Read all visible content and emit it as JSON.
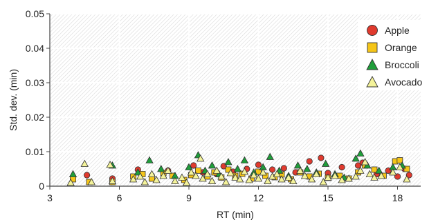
{
  "chart_data": {
    "type": "scatter",
    "title": "",
    "xlabel": "RT (min)",
    "ylabel": "Std. dev. (min)",
    "xlim": [
      3,
      19
    ],
    "ylim": [
      0,
      0.05
    ],
    "x_ticks": [
      3,
      6,
      9,
      12,
      15,
      18
    ],
    "x_tick_labels": [
      "3",
      "6",
      "9",
      "12",
      "15",
      "18"
    ],
    "y_ticks": [
      0,
      0.01,
      0.02,
      0.03,
      0.04,
      0.05
    ],
    "y_tick_labels": [
      "0",
      "0.01",
      "0.02",
      "0.03",
      "0.04",
      "0.05"
    ],
    "grid": true,
    "legend_position": "top-right",
    "series": [
      {
        "name": "Apple",
        "marker": "circle",
        "color": "#e03a2e",
        "x": [
          4.6,
          5.7,
          6.8,
          7.4,
          8.1,
          9.2,
          9.6,
          10.2,
          10.5,
          10.9,
          11.5,
          12.0,
          12.6,
          13.1,
          13.6,
          14.2,
          14.7,
          15.0,
          15.6,
          16.3,
          16.5,
          17.1,
          17.6,
          18.0,
          18.3,
          18.5
        ],
        "y": [
          0.0032,
          0.0022,
          0.0048,
          0.003,
          0.0045,
          0.006,
          0.004,
          0.0035,
          0.0058,
          0.0042,
          0.005,
          0.0062,
          0.0048,
          0.0052,
          0.004,
          0.0072,
          0.0082,
          0.0038,
          0.0055,
          0.006,
          0.0068,
          0.0035,
          0.0045,
          0.0028,
          0.005,
          0.0032
        ]
      },
      {
        "name": "Orange",
        "marker": "square",
        "color": "#f5c518",
        "x": [
          4.0,
          4.7,
          5.7,
          6.6,
          7.0,
          7.4,
          7.9,
          8.3,
          8.8,
          9.1,
          9.4,
          9.8,
          10.1,
          10.4,
          10.7,
          11.0,
          11.3,
          11.7,
          12.0,
          12.3,
          12.7,
          13.0,
          13.4,
          13.8,
          14.2,
          14.6,
          15.0,
          15.5,
          15.9,
          16.3,
          16.6,
          17.0,
          17.4,
          17.9,
          18.1,
          18.4
        ],
        "y": [
          0.002,
          0.0012,
          0.0012,
          0.0028,
          0.0035,
          0.0022,
          0.0038,
          0.003,
          0.0018,
          0.0032,
          0.0045,
          0.0028,
          0.004,
          0.0025,
          0.0048,
          0.003,
          0.0036,
          0.0022,
          0.0042,
          0.003,
          0.0026,
          0.0034,
          0.002,
          0.004,
          0.0028,
          0.0036,
          0.0024,
          0.003,
          0.0022,
          0.004,
          0.006,
          0.0048,
          0.003,
          0.0072,
          0.0075,
          0.005
        ]
      },
      {
        "name": "Broccoli",
        "marker": "triangle",
        "color": "#1f9e3a",
        "x": [
          4.0,
          5.7,
          6.8,
          7.3,
          7.8,
          8.4,
          9.0,
          9.4,
          9.7,
          10.0,
          10.3,
          10.7,
          11.1,
          11.4,
          11.8,
          12.2,
          12.5,
          12.9,
          13.3,
          13.7,
          14.1,
          14.5,
          14.9,
          15.3,
          15.7,
          16.2,
          16.4,
          16.7,
          17.2,
          17.8,
          18.2
        ],
        "y": [
          0.0035,
          0.006,
          0.004,
          0.0075,
          0.005,
          0.003,
          0.0055,
          0.009,
          0.0045,
          0.006,
          0.0035,
          0.007,
          0.005,
          0.0075,
          0.004,
          0.0055,
          0.0085,
          0.0045,
          0.003,
          0.006,
          0.005,
          0.004,
          0.0065,
          0.0035,
          0.0025,
          0.008,
          0.0095,
          0.006,
          0.0045,
          0.0055,
          0.006
        ]
      },
      {
        "name": "Avocado",
        "marker": "triangle",
        "color": "#f4f39a",
        "x": [
          3.9,
          4.5,
          4.8,
          5.6,
          5.7,
          6.6,
          6.9,
          7.1,
          7.4,
          7.6,
          7.9,
          8.1,
          8.4,
          8.7,
          8.9,
          9.1,
          9.3,
          9.5,
          9.6,
          9.8,
          10.0,
          10.2,
          10.4,
          10.6,
          10.8,
          11.0,
          11.2,
          11.4,
          11.6,
          11.8,
          12.0,
          12.2,
          12.4,
          12.6,
          12.8,
          13.0,
          13.3,
          13.5,
          13.8,
          14.0,
          14.3,
          14.5,
          14.8,
          15.0,
          15.3,
          15.6,
          15.9,
          16.2,
          16.4,
          16.6,
          16.8,
          17.0,
          17.3,
          17.8,
          18.1,
          18.4
        ],
        "y": [
          0.001,
          0.0065,
          0.0012,
          0.0062,
          0.0015,
          0.002,
          0.0028,
          0.0012,
          0.0035,
          0.0018,
          0.003,
          0.0045,
          0.0015,
          0.0025,
          0.001,
          0.004,
          0.003,
          0.008,
          0.0022,
          0.0035,
          0.0015,
          0.0045,
          0.0028,
          0.0012,
          0.0038,
          0.0025,
          0.002,
          0.0042,
          0.0018,
          0.0032,
          0.0022,
          0.004,
          0.0015,
          0.0028,
          0.0035,
          0.002,
          0.0025,
          0.0015,
          0.0045,
          0.003,
          0.002,
          0.0035,
          0.0012,
          0.0025,
          0.003,
          0.0018,
          0.0022,
          0.0028,
          0.0045,
          0.007,
          0.0035,
          0.0025,
          0.003,
          0.004,
          0.0055,
          0.002
        ]
      }
    ]
  }
}
